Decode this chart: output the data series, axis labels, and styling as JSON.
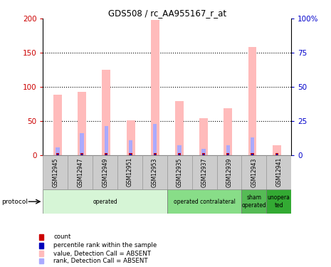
{
  "title": "GDS508 / rc_AA955167_r_at",
  "samples": [
    "GSM12945",
    "GSM12947",
    "GSM12949",
    "GSM12951",
    "GSM12953",
    "GSM12935",
    "GSM12937",
    "GSM12939",
    "GSM12943",
    "GSM12941"
  ],
  "pink_values": [
    88,
    93,
    125,
    51,
    198,
    79,
    54,
    69,
    158,
    14
  ],
  "blue_rank_values": [
    11,
    32,
    42,
    21,
    46,
    14,
    9,
    14,
    26,
    0
  ],
  "ylim_left": [
    0,
    200
  ],
  "ylim_right": [
    0,
    100
  ],
  "yticks_left": [
    0,
    50,
    100,
    150,
    200
  ],
  "ytick_labels_left": [
    "0",
    "50",
    "100",
    "150",
    "200"
  ],
  "yticks_right": [
    0,
    25,
    50,
    75,
    100
  ],
  "ytick_labels_right": [
    "0",
    "25",
    "50",
    "75",
    "100%"
  ],
  "groups": [
    {
      "label": "operated",
      "start": 0,
      "end": 5,
      "color": "#d6f5d6"
    },
    {
      "label": "operated contralateral",
      "start": 5,
      "end": 8,
      "color": "#88dd88"
    },
    {
      "label": "sham\noperated",
      "start": 8,
      "end": 9,
      "color": "#55bb55"
    },
    {
      "label": "unopera\nted",
      "start": 9,
      "end": 10,
      "color": "#33aa33"
    }
  ],
  "pink_color": "#ffbbbb",
  "blue_color": "#aaaaff",
  "red_color": "#cc0000",
  "dark_blue_color": "#0000bb",
  "left_tick_color": "#cc0000",
  "right_tick_color": "#0000cc",
  "legend_items": [
    {
      "color": "#cc0000",
      "label": "count"
    },
    {
      "color": "#0000bb",
      "label": "percentile rank within the sample"
    },
    {
      "color": "#ffbbbb",
      "label": "value, Detection Call = ABSENT"
    },
    {
      "color": "#aaaaff",
      "label": "rank, Detection Call = ABSENT"
    }
  ]
}
